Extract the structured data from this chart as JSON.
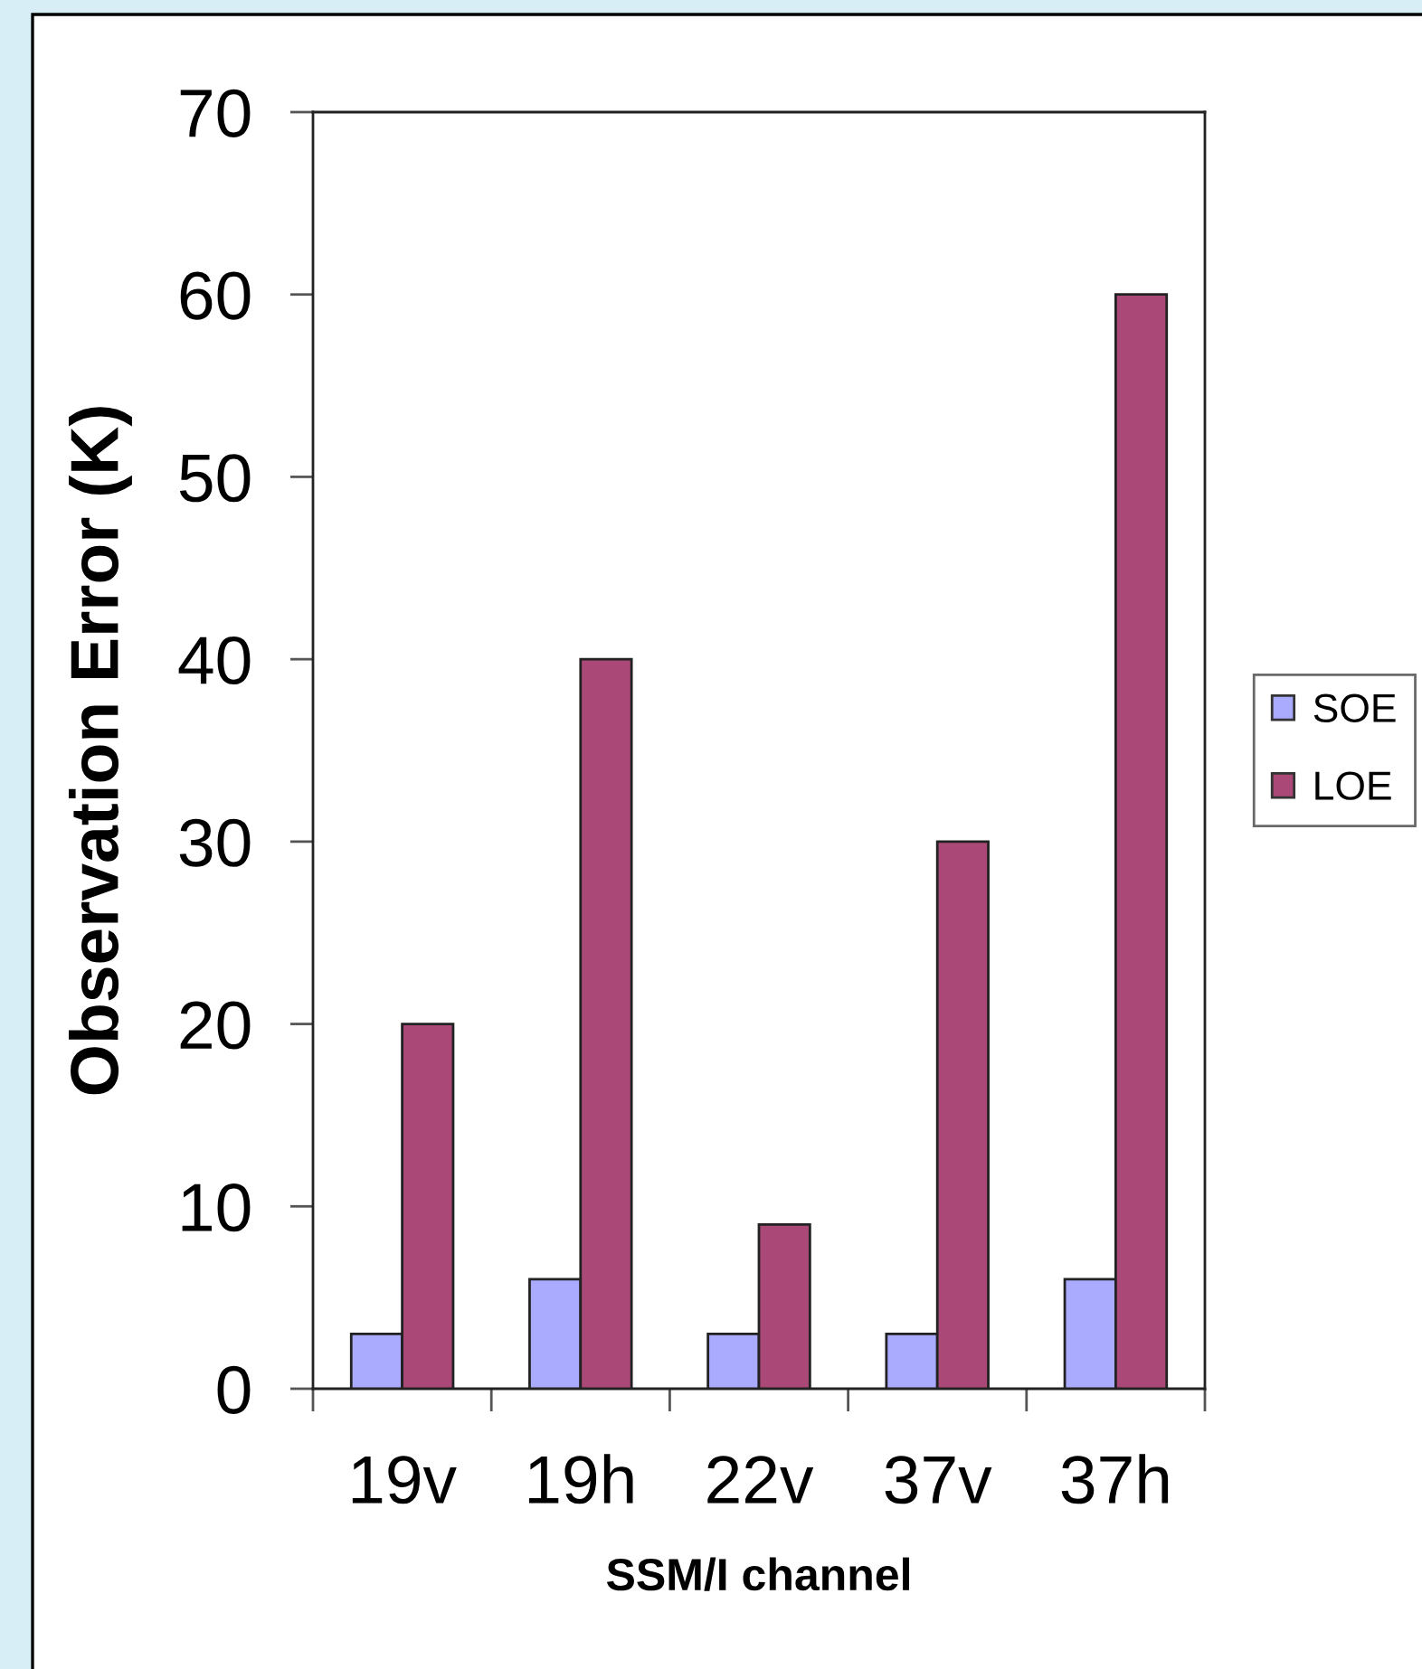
{
  "chart_data": {
    "type": "bar",
    "ylabel": "Observation Error (K)",
    "xlabel": "SSM/I channel",
    "categories": [
      "19v",
      "19h",
      "22v",
      "37v",
      "37h"
    ],
    "series": [
      {
        "name": "SOE",
        "color": "#aaaaff",
        "values": [
          3,
          6,
          3,
          3,
          6
        ]
      },
      {
        "name": "LOE",
        "color": "#aa4977",
        "values": [
          20,
          40,
          9,
          30,
          60
        ]
      }
    ],
    "ylim": [
      0,
      70
    ],
    "yticks": [
      0,
      10,
      20,
      30,
      40,
      50,
      60,
      70
    ],
    "legend": "right"
  }
}
